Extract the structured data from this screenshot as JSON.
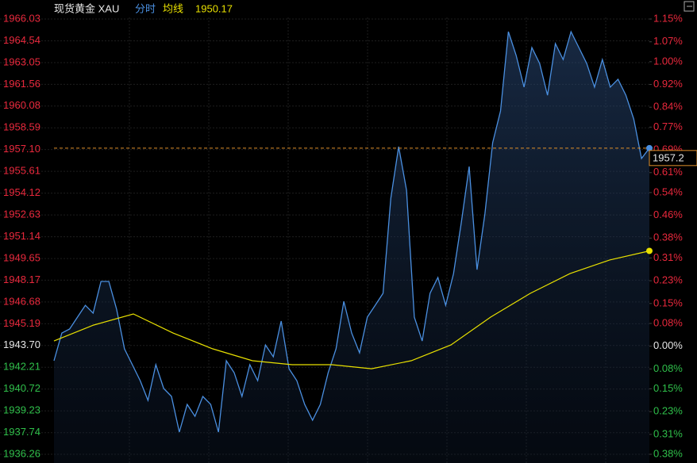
{
  "chart_data": {
    "type": "line",
    "title": "现货黄金 XAU",
    "up_color": "#e8283c",
    "down_color": "#2fbf4a",
    "flat_color": "#e6e6e6",
    "grid": true,
    "series": [
      {
        "name": "分时",
        "color": "#4a8fe0",
        "values": [
          1942.66,
          1944.55,
          1944.83,
          1945.64,
          1946.45,
          1945.91,
          1948.08,
          1948.08,
          1946.18,
          1943.47,
          1942.39,
          1941.3,
          1939.95,
          1942.39,
          1940.76,
          1940.22,
          1937.78,
          1939.67,
          1938.86,
          1940.22,
          1939.67,
          1937.78,
          1942.66,
          1941.84,
          1940.22,
          1942.39,
          1941.3,
          1943.74,
          1942.93,
          1945.37,
          1942.11,
          1941.3,
          1939.67,
          1938.59,
          1939.67,
          1941.84,
          1943.47,
          1946.72,
          1944.55,
          1943.2,
          1945.64,
          1946.45,
          1947.27,
          1953.77,
          1957.3,
          1954.32,
          1945.64,
          1944.01,
          1947.27,
          1948.35,
          1946.45,
          1948.62,
          1952.15,
          1955.94,
          1948.89,
          1952.69,
          1957.57,
          1959.74,
          1965.16,
          1963.54,
          1961.37,
          1964.08,
          1962.99,
          1960.82,
          1964.35,
          1963.26,
          1965.16,
          1964.08,
          1962.99,
          1961.37,
          1963.26,
          1961.37,
          1961.91,
          1960.82,
          1959.2,
          1956.49,
          1957.2
        ]
      },
      {
        "name": "均线",
        "color": "#e8e000",
        "values": [
          1944.01,
          1945.1,
          1945.86,
          1944.55,
          1943.47,
          1942.66,
          1942.39,
          1942.39,
          1942.11,
          1942.66,
          1943.74,
          1945.64,
          1947.27,
          1948.62,
          1949.55,
          1950.17
        ]
      }
    ],
    "ylim": [
      1936.26,
      1966.03
    ],
    "yticks": [
      {
        "value": 1966.03,
        "label": "1966.03"
      },
      {
        "value": 1964.54,
        "label": "1964.54"
      },
      {
        "value": 1963.05,
        "label": "1963.05"
      },
      {
        "value": 1961.56,
        "label": "1961.56"
      },
      {
        "value": 1960.08,
        "label": "1960.08"
      },
      {
        "value": 1958.59,
        "label": "1958.59"
      },
      {
        "value": 1957.1,
        "label": "1957.10"
      },
      {
        "value": 1955.61,
        "label": "1955.61"
      },
      {
        "value": 1954.12,
        "label": "1954.12"
      },
      {
        "value": 1952.63,
        "label": "1952.63"
      },
      {
        "value": 1951.14,
        "label": "1951.14"
      },
      {
        "value": 1949.65,
        "label": "1949.65"
      },
      {
        "value": 1948.17,
        "label": "1948.17"
      },
      {
        "value": 1946.68,
        "label": "1946.68"
      },
      {
        "value": 1945.19,
        "label": "1945.19"
      },
      {
        "value": 1943.7,
        "label": "1943.70"
      },
      {
        "value": 1942.21,
        "label": "1942.21"
      },
      {
        "value": 1940.72,
        "label": "1940.72"
      },
      {
        "value": 1939.23,
        "label": "1939.23"
      },
      {
        "value": 1937.74,
        "label": "1937.74"
      },
      {
        "value": 1936.26,
        "label": "1936.26"
      }
    ],
    "y2lim": [
      -0.38,
      1.15
    ],
    "y2ticks": [
      {
        "value": 1.15,
        "label": "1.15%"
      },
      {
        "value": 1.07,
        "label": "1.07%"
      },
      {
        "value": 1.0,
        "label": "1.00%"
      },
      {
        "value": 0.92,
        "label": "0.92%"
      },
      {
        "value": 0.84,
        "label": "0.84%"
      },
      {
        "value": 0.77,
        "label": "0.77%"
      },
      {
        "value": 0.69,
        "label": "0.69%"
      },
      {
        "value": 0.61,
        "label": "0.61%"
      },
      {
        "value": 0.54,
        "label": "0.54%"
      },
      {
        "value": 0.46,
        "label": "0.46%"
      },
      {
        "value": 0.38,
        "label": "0.38%"
      },
      {
        "value": 0.31,
        "label": "0.31%"
      },
      {
        "value": 0.23,
        "label": "0.23%"
      },
      {
        "value": 0.15,
        "label": "0.15%"
      },
      {
        "value": 0.08,
        "label": "0.08%"
      },
      {
        "value": 0,
        "label": "0.00%"
      },
      {
        "value": -0.08,
        "label": "0.08%"
      },
      {
        "value": -0.15,
        "label": "0.15%"
      },
      {
        "value": -0.23,
        "label": "0.23%"
      },
      {
        "value": -0.31,
        "label": "0.31%"
      },
      {
        "value": -0.38,
        "label": "0.38%"
      }
    ]
  }
}
